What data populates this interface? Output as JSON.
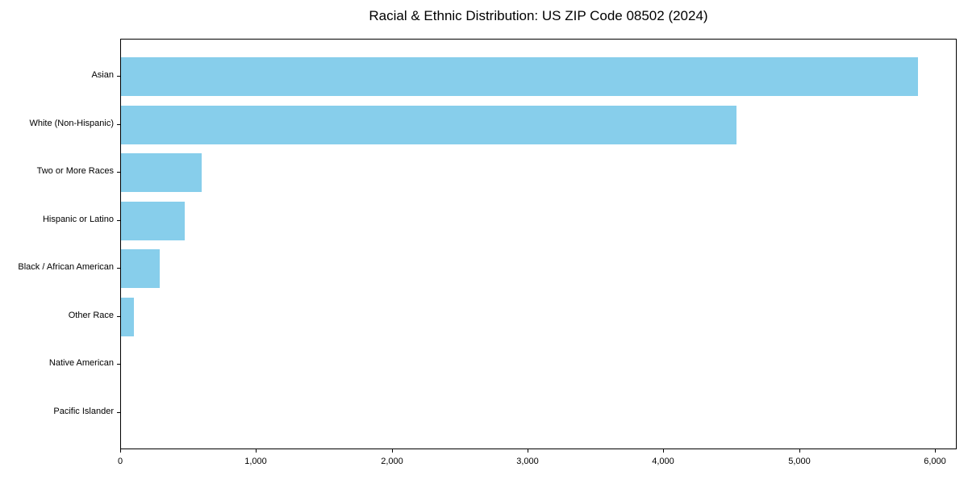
{
  "chart_data": {
    "type": "bar",
    "orientation": "horizontal",
    "title": "Racial & Ethnic Distribution: US ZIP Code 08502 (2024)",
    "categories": [
      "Asian",
      "White (Non-Hispanic)",
      "Two or More Races",
      "Hispanic or Latino",
      "Black / African American",
      "Other Race",
      "Native American",
      "Pacific Islander"
    ],
    "values": [
      5870,
      4530,
      595,
      470,
      285,
      95,
      0,
      0
    ],
    "xlabel": "",
    "ylabel": "",
    "xlim": [
      0,
      6160
    ],
    "xticks": [
      0,
      1000,
      2000,
      3000,
      4000,
      5000,
      6000
    ],
    "xtick_labels": [
      "0",
      "1,000",
      "2,000",
      "3,000",
      "4,000",
      "5,000",
      "6,000"
    ],
    "bar_color": "#87CEEB",
    "frame_color": "#000000",
    "text_color": "#000000",
    "grid": false,
    "legend": null
  }
}
